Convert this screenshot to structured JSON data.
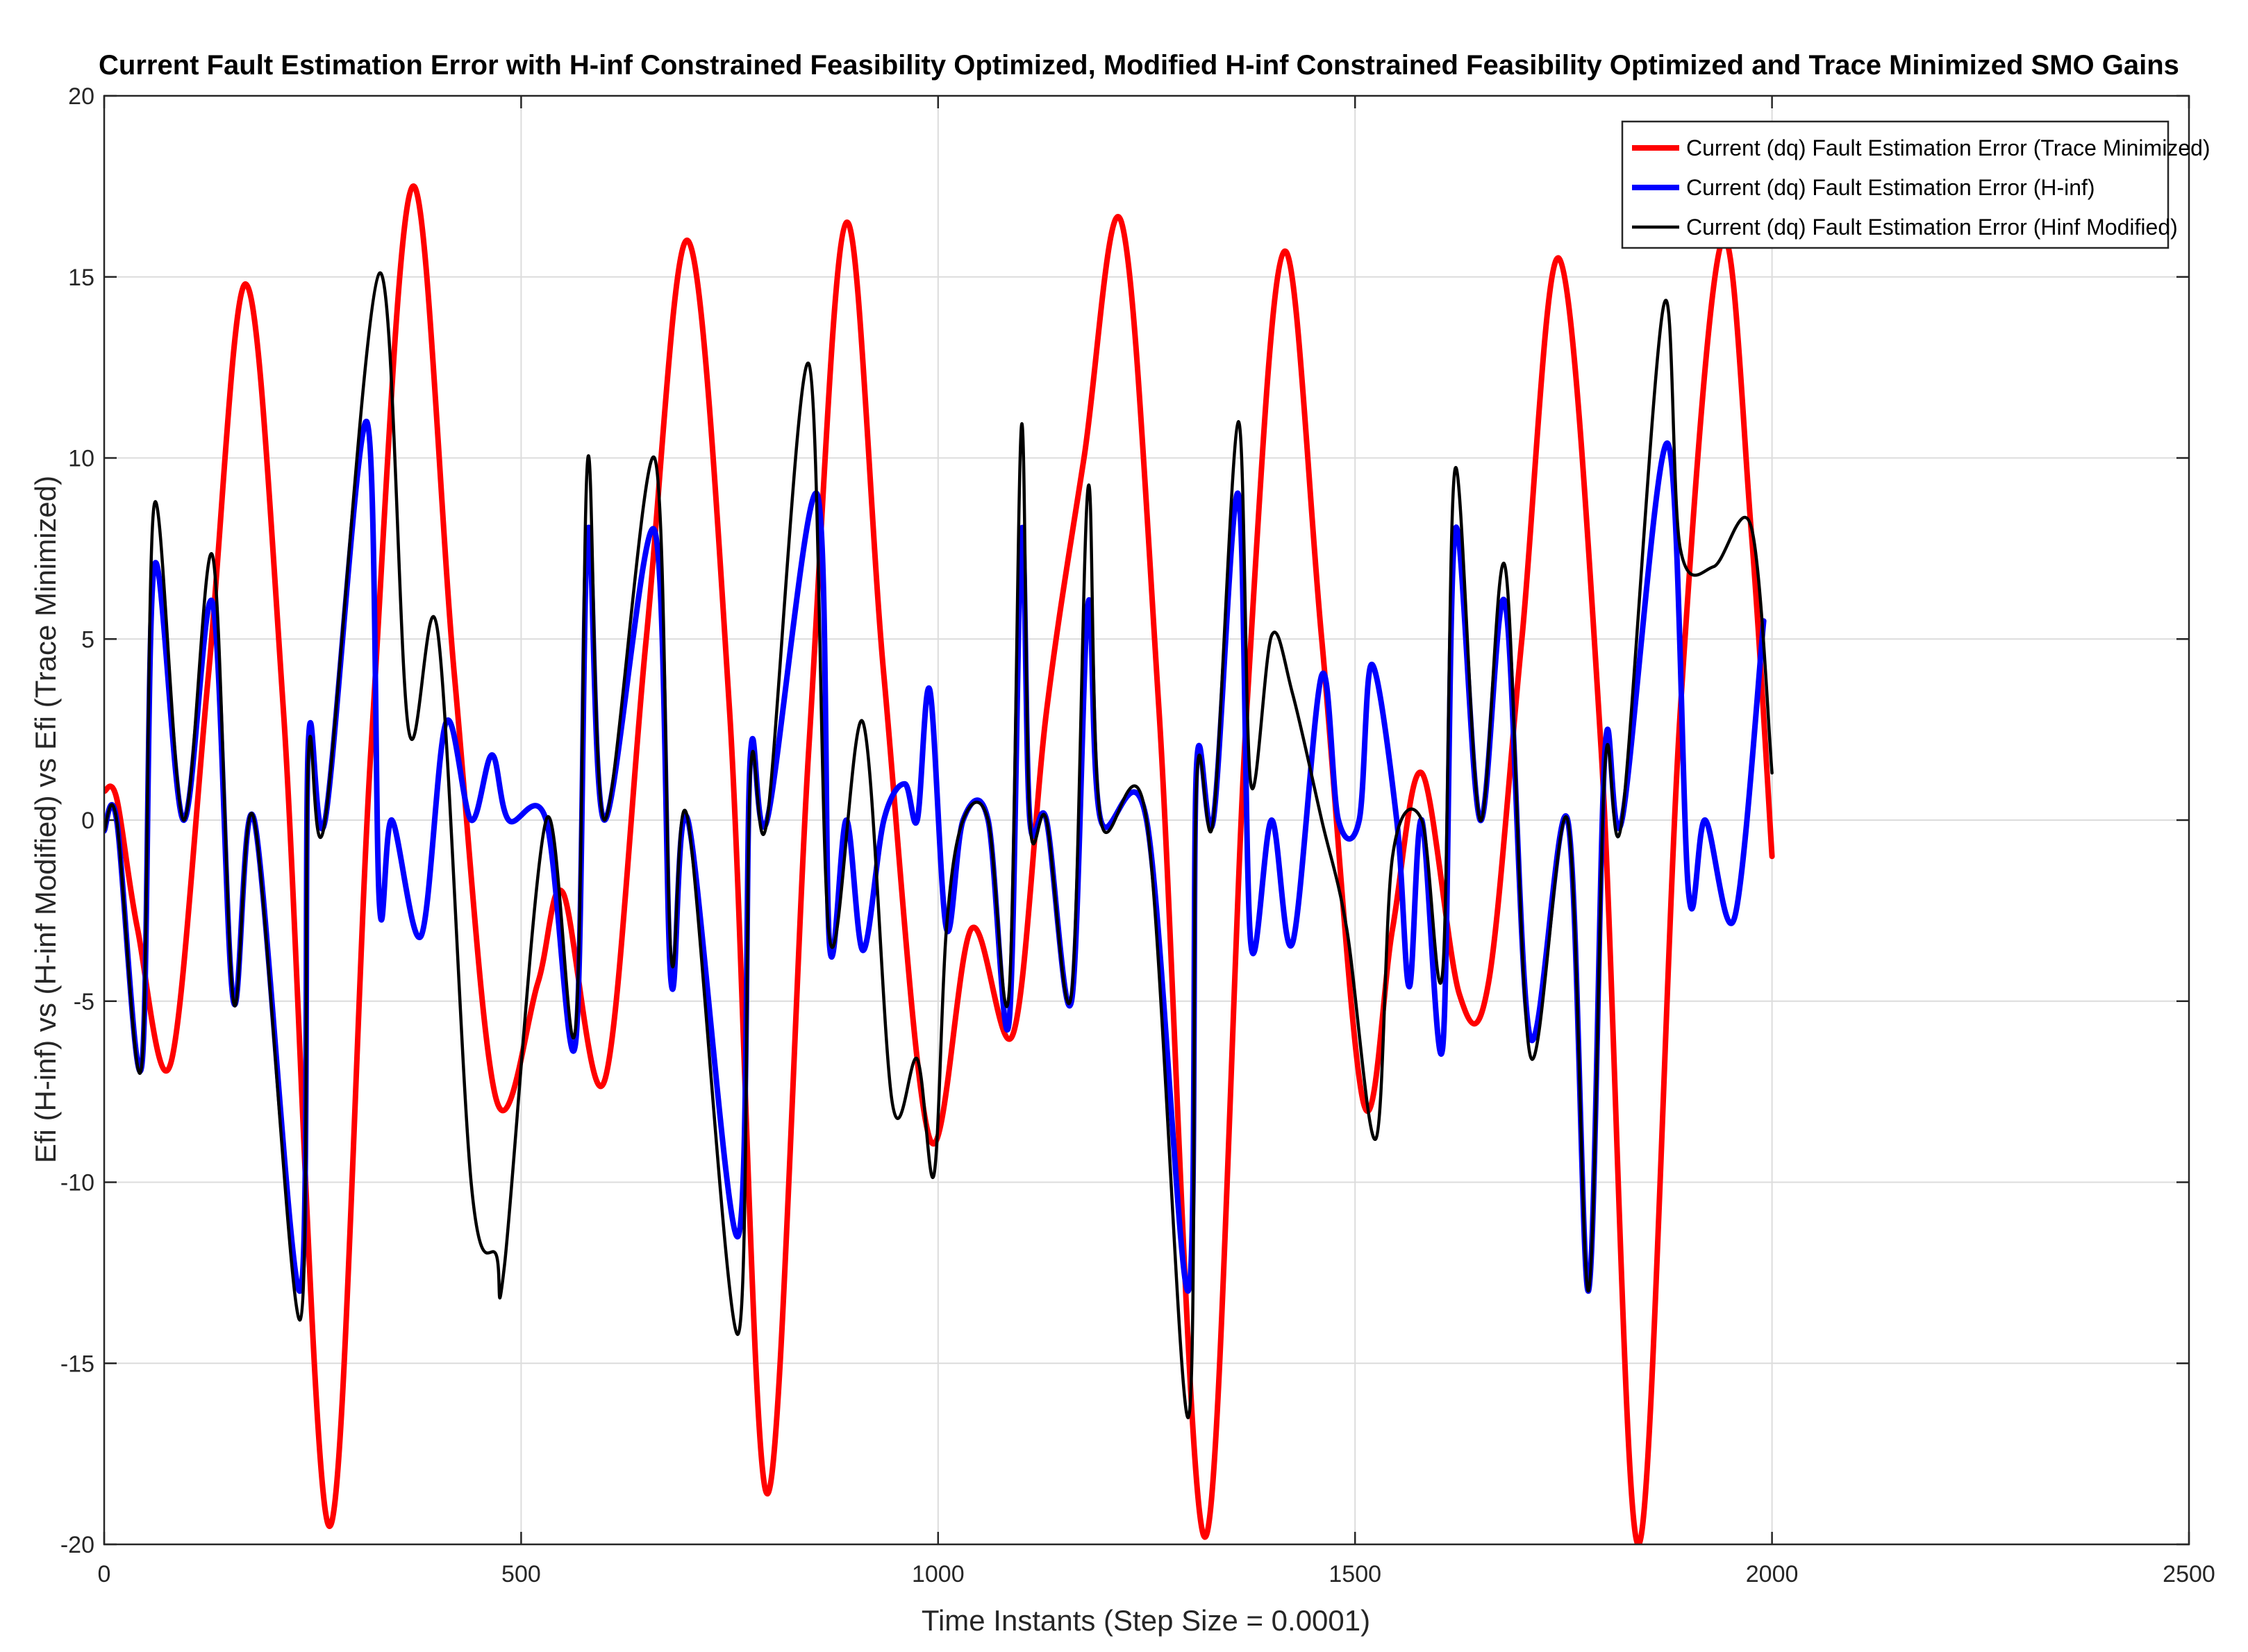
{
  "chart_data": {
    "type": "line",
    "title": "Current Fault Estimation Error with H-inf Constrained Feasibility Optimized, Modified H-inf Constrained Feasibility Optimized and Trace Minimized SMO Gains",
    "xlabel": "Time Instants (Step Size = 0.0001)",
    "ylabel": "Efi (H-inf) vs (H-inf Modified) vs Efi (Trace Minimized)",
    "xlim": [
      0,
      2500
    ],
    "ylim": [
      -20,
      20
    ],
    "xticks": [
      0,
      500,
      1000,
      1500,
      2000,
      2500
    ],
    "xtick_labels": [
      "0",
      "500",
      "1000",
      "1500",
      "2000",
      "2500"
    ],
    "yticks": [
      -20,
      -15,
      -10,
      -5,
      0,
      5,
      10,
      15,
      20
    ],
    "ytick_labels": [
      "-20",
      "-15",
      "-10",
      "-5",
      "0",
      "5",
      "10",
      "15",
      "20"
    ],
    "grid": true,
    "legend_position": "top-right",
    "series": [
      {
        "name": "Current (dq) Fault Estimation Error (Trace Minimized)",
        "color": "#ff0000",
        "x": [
          0,
          15,
          40,
          80,
          125,
          170,
          215,
          270,
          320,
          370,
          420,
          470,
          520,
          550,
          600,
          650,
          700,
          750,
          795,
          845,
          890,
          935,
          990,
          1040,
          1090,
          1130,
          1175,
          1220,
          1265,
          1320,
          1370,
          1415,
          1460,
          1510,
          1545,
          1580,
          1625,
          1660,
          1700,
          1745,
          1795,
          1840,
          1890,
          1940,
          1975,
          2000
        ],
        "y": [
          0.8,
          0.6,
          -3,
          -6.7,
          4,
          14.8,
          3,
          -19.5,
          2,
          17.5,
          4,
          -7.7,
          -4.5,
          -2,
          -7.2,
          5,
          16,
          3,
          -18.6,
          2,
          16.5,
          4,
          -8.8,
          -3,
          -5.9,
          3,
          10,
          16.5,
          3,
          -19.8,
          3,
          15.7,
          5,
          -7.8,
          -3,
          1.3,
          -4.8,
          -4.5,
          5,
          15.5,
          2,
          -20,
          3,
          16,
          8,
          -1
        ]
      },
      {
        "name": "Current (dq) Fault Estimation Error (H-inf)",
        "color": "#0000ff",
        "x": [
          0,
          15,
          45,
          60,
          95,
          130,
          155,
          180,
          235,
          245,
          265,
          315,
          330,
          345,
          380,
          410,
          440,
          465,
          485,
          530,
          565,
          580,
          600,
          660,
          680,
          700,
          760,
          775,
          795,
          855,
          870,
          890,
          910,
          935,
          960,
          975,
          990,
          1010,
          1030,
          1060,
          1085,
          1100,
          1110,
          1130,
          1160,
          1180,
          1195,
          1250,
          1300,
          1310,
          1330,
          1360,
          1375,
          1400,
          1425,
          1460,
          1480,
          1505,
          1520,
          1550,
          1565,
          1580,
          1605,
          1620,
          1650,
          1680,
          1710,
          1755,
          1780,
          1800,
          1820,
          1875,
          1900,
          1920,
          1955,
          1990
        ],
        "y": [
          -0.3,
          0,
          -6.8,
          7,
          0,
          6,
          -5,
          0,
          -13,
          2.2,
          0,
          11,
          -2.3,
          0,
          -3.2,
          2.7,
          0,
          1.8,
          0,
          0,
          -6.2,
          8,
          0,
          8,
          -4.5,
          0,
          -11.5,
          1.8,
          0,
          9,
          -3.5,
          0,
          -3.6,
          0,
          1,
          0,
          3.6,
          -3,
          0,
          0,
          -5.6,
          8,
          0,
          0,
          -5,
          6,
          0,
          0,
          -13,
          1.5,
          0,
          9,
          -3.4,
          0,
          -3.4,
          4,
          0,
          0,
          4.3,
          0,
          -4.6,
          0,
          -6.3,
          8,
          0,
          6,
          -6,
          0,
          -13,
          2,
          0,
          10.4,
          -2,
          0,
          -2.7,
          5.5
        ]
      },
      {
        "name": "Current (dq) Fault Estimation Error (Hinf Modified)",
        "color": "#000000",
        "x": [
          0,
          15,
          45,
          60,
          95,
          130,
          155,
          180,
          235,
          245,
          265,
          330,
          365,
          400,
          440,
          470,
          480,
          530,
          565,
          580,
          600,
          660,
          680,
          700,
          760,
          775,
          795,
          845,
          870,
          910,
          945,
          975,
          995,
          1010,
          1030,
          1060,
          1085,
          1100,
          1110,
          1130,
          1160,
          1180,
          1195,
          1250,
          1300,
          1310,
          1330,
          1360,
          1375,
          1400,
          1425,
          1460,
          1490,
          1525,
          1545,
          1580,
          1605,
          1620,
          1650,
          1680,
          1710,
          1755,
          1780,
          1800,
          1820,
          1870,
          1890,
          1930,
          1975,
          2000
        ],
        "y": [
          -0.3,
          0,
          -6.8,
          8.7,
          0,
          7.3,
          -5,
          0,
          -13.8,
          1.8,
          0,
          15.1,
          2.5,
          5.2,
          -10,
          -12,
          -12.3,
          0,
          -5.8,
          10,
          0,
          10,
          -3.8,
          0,
          -14.2,
          1.3,
          0,
          12.6,
          -3.3,
          2.7,
          -7.8,
          -6.6,
          -9.8,
          -3,
          0,
          0,
          -4.8,
          10.9,
          0,
          0,
          -4.8,
          9.2,
          0,
          0,
          -16.5,
          1,
          0,
          11,
          1,
          5.1,
          3.5,
          0,
          -3,
          -8.8,
          -1,
          0,
          -4.2,
          9.7,
          0,
          7,
          -6.5,
          0,
          -13,
          1.6,
          0,
          14.2,
          7.5,
          7,
          8.1,
          1.3
        ]
      }
    ]
  }
}
